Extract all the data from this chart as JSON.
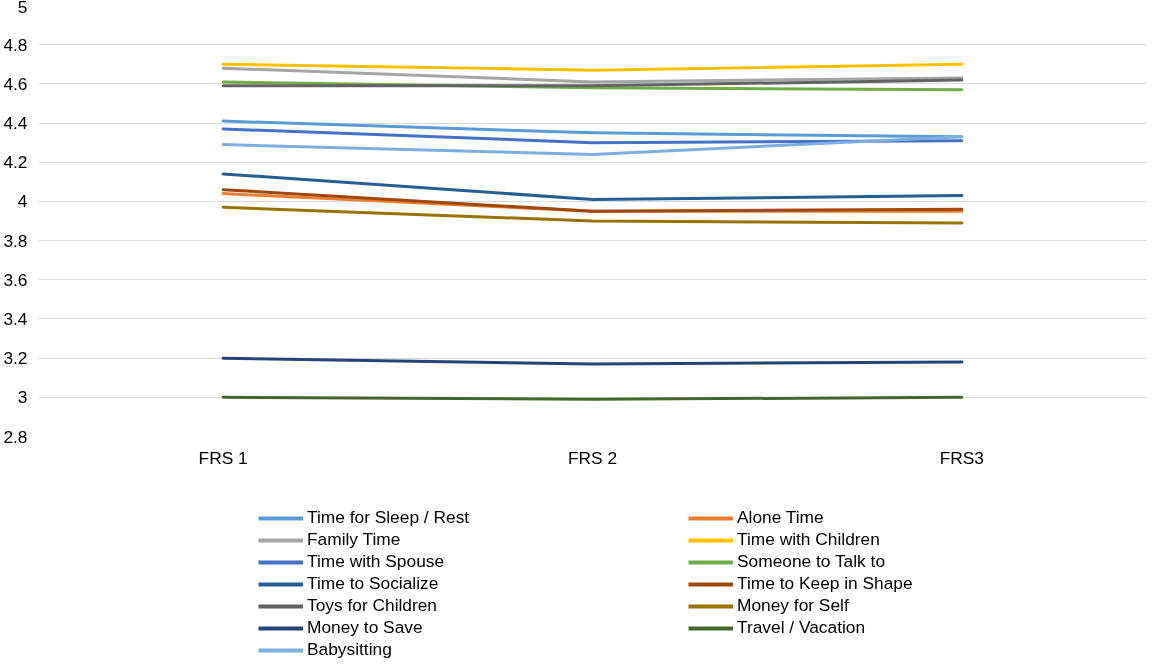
{
  "chart_data": {
    "type": "line",
    "categories": [
      "FRS 1",
      "FRS 2",
      "FRS3"
    ],
    "ylim": [
      2.8,
      5
    ],
    "yticks": [
      {
        "value": 2.8,
        "label": "2.8"
      },
      3,
      {
        "value": 3.2,
        "label": "3.2"
      },
      {
        "value": 3.4,
        "label": "3.4"
      },
      {
        "value": 3.6,
        "label": "3.6"
      },
      {
        "value": 3.8,
        "label": "3.8"
      },
      4,
      {
        "value": 4.2,
        "label": "4.2"
      },
      {
        "value": 4.4,
        "label": "4.4"
      },
      {
        "value": 4.6,
        "label": "4.6"
      },
      {
        "value": 4.8,
        "label": "4.8"
      },
      5
    ],
    "grid": "y",
    "legend": "bottom",
    "marker": "none",
    "line_style": "solid",
    "series": [
      {
        "name": "Time for Sleep / Rest",
        "color": "#5b9bd5",
        "values": [
          4.41,
          4.35,
          4.33
        ]
      },
      {
        "name": "Alone Time",
        "color": "#ed7d31",
        "values": [
          4.04,
          3.95,
          3.95
        ]
      },
      {
        "name": "Family Time",
        "color": "#a5a5a5",
        "values": [
          4.68,
          4.61,
          4.63
        ]
      },
      {
        "name": "Time with Children",
        "color": "#ffc000",
        "values": [
          4.7,
          4.67,
          4.7
        ]
      },
      {
        "name": "Time with Spouse",
        "color": "#4472c4",
        "values": [
          4.37,
          4.3,
          4.31
        ]
      },
      {
        "name": "Someone to Talk to",
        "color": "#70ad47",
        "values": [
          4.61,
          4.58,
          4.57
        ]
      },
      {
        "name": "Time to Socialize",
        "color": "#255e91",
        "values": [
          4.14,
          4.01,
          4.03
        ]
      },
      {
        "name": "Time to Keep in Shape",
        "color": "#9e480e",
        "values": [
          4.06,
          3.95,
          3.96
        ]
      },
      {
        "name": "Toys for Children",
        "color": "#636363",
        "values": [
          4.59,
          4.59,
          4.62
        ]
      },
      {
        "name": "Money for Self",
        "color": "#997300",
        "values": [
          3.97,
          3.9,
          3.89
        ]
      },
      {
        "name": "Money to Save",
        "color": "#264478",
        "values": [
          3.2,
          3.17,
          3.18
        ]
      },
      {
        "name": "Travel / Vacation",
        "color": "#43682b",
        "values": [
          3.0,
          2.99,
          3.0
        ]
      },
      {
        "name": "Babysitting",
        "color": "#7cafdd",
        "values": [
          4.29,
          4.24,
          4.33
        ]
      }
    ]
  }
}
